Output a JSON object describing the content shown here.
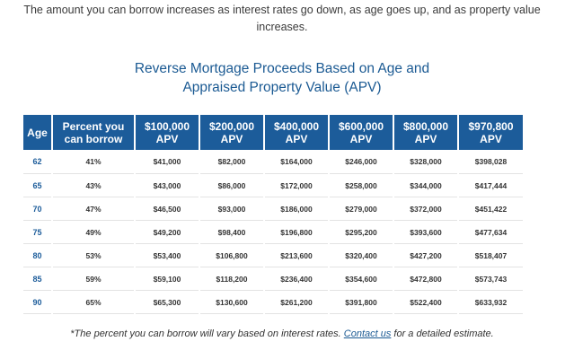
{
  "intro": "The amount you can borrow increases as interest rates go down, as age goes up, and as property value increases.",
  "title": {
    "line1": "Reverse Mortgage Proceeds Based on Age and",
    "line2": "Appraised Property Value (APV)"
  },
  "table": {
    "headers": [
      [
        "Age"
      ],
      [
        "Percent you",
        "can borrow"
      ],
      [
        "$100,000",
        "APV"
      ],
      [
        "$200,000",
        "APV"
      ],
      [
        "$400,000",
        "APV"
      ],
      [
        "$600,000",
        "APV"
      ],
      [
        "$800,000",
        "APV"
      ],
      [
        "$970,800",
        "APV"
      ]
    ],
    "rows": [
      [
        "62",
        "41%",
        "$41,000",
        "$82,000",
        "$164,000",
        "$246,000",
        "$328,000",
        "$398,028"
      ],
      [
        "65",
        "43%",
        "$43,000",
        "$86,000",
        "$172,000",
        "$258,000",
        "$344,000",
        "$417,444"
      ],
      [
        "70",
        "47%",
        "$46,500",
        "$93,000",
        "$186,000",
        "$279,000",
        "$372,000",
        "$451,422"
      ],
      [
        "75",
        "49%",
        "$49,200",
        "$98,400",
        "$196,800",
        "$295,200",
        "$393,600",
        "$477,634"
      ],
      [
        "80",
        "53%",
        "$53,400",
        "$106,800",
        "$213,600",
        "$320,400",
        "$427,200",
        "$518,407"
      ],
      [
        "85",
        "59%",
        "$59,100",
        "$118,200",
        "$236,400",
        "$354,600",
        "$472,800",
        "$573,743"
      ],
      [
        "90",
        "65%",
        "$65,300",
        "$130,600",
        "$261,200",
        "$391,800",
        "$522,400",
        "$633,932"
      ]
    ]
  },
  "footnote": {
    "before": "*The percent you can borrow will vary based on interest rates. ",
    "link": "Contact us",
    "after": " for a detailed estimate."
  },
  "colors": {
    "header_bg": "#1c5c9a",
    "title": "#1b5a93",
    "age_text": "#1c5c9a"
  }
}
